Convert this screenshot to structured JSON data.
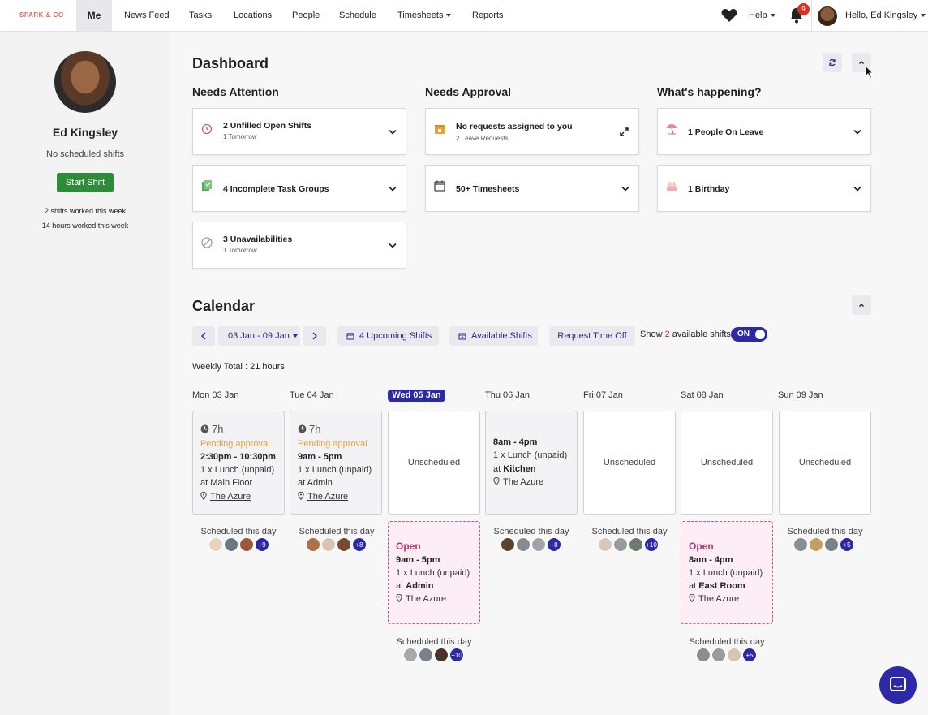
{
  "nav": {
    "brand": "SPARK & CO",
    "me": "Me",
    "items": [
      "News Feed",
      "Tasks",
      "Locations",
      "People",
      "Schedule",
      "Timesheets",
      "Reports"
    ],
    "help": "Help",
    "notification_count": "9",
    "greeting": "Hello, Ed Kingsley"
  },
  "profile": {
    "name": "Ed Kingsley",
    "status": "No scheduled shifts",
    "start_shift": "Start Shift",
    "shifts_worked": "2 shifts worked this week",
    "hours_worked": "14 hours worked this week"
  },
  "dashboard": {
    "title": "Dashboard",
    "needs_attention": {
      "title": "Needs Attention",
      "cards": [
        {
          "title": "2 Unfilled Open Shifts",
          "sub": "1 Tomorrow",
          "icon": "clock-icon"
        },
        {
          "title": "4 Incomplete Task Groups",
          "sub": "",
          "icon": "task-group-icon"
        },
        {
          "title": "3 Unavailabilities",
          "sub": "1 Tomorrow",
          "icon": "unavailable-icon"
        }
      ]
    },
    "needs_approval": {
      "title": "Needs Approval",
      "cards": [
        {
          "title": "No requests assigned to you",
          "sub": "2 Leave Requests",
          "icon": "leave-request-icon"
        },
        {
          "title": "50+ Timesheets",
          "sub": "",
          "icon": "timesheet-calendar-icon"
        }
      ]
    },
    "whats_happening": {
      "title": "What's happening?",
      "cards": [
        {
          "title": "1 People On Leave",
          "sub": "",
          "icon": "beach-umbrella-icon"
        },
        {
          "title": "1 Birthday",
          "sub": "",
          "icon": "birthday-cake-icon"
        }
      ]
    }
  },
  "calendar": {
    "title": "Calendar",
    "date_range": "03 Jan - 09 Jan",
    "upcoming_shifts": "4 Upcoming Shifts",
    "available_shifts": "Available Shifts",
    "request_time_off": "Request Time Off",
    "show_prefix": "Show",
    "show_count": "2",
    "show_suffix": "available shifts",
    "toggle_label": "ON",
    "weekly_total": "Weekly Total : 21 hours",
    "scheduled_label": "Scheduled this day",
    "days": [
      {
        "label": "Mon 03 Jan",
        "hours": "7h",
        "status": "Pending approval",
        "time": "2:30pm - 10:30pm",
        "break": "1 x Lunch (unpaid)",
        "area_prefix": "at",
        "area": "Main Floor",
        "location": "The Azure",
        "plus": "+9"
      },
      {
        "label": "Tue 04 Jan",
        "hours": "7h",
        "status": "Pending approval",
        "time": "9am - 5pm",
        "break": "1 x Lunch (unpaid)",
        "area_prefix": "at",
        "area": "Admin",
        "location": "The Azure",
        "plus": "+8"
      },
      {
        "label": "Wed 05 Jan",
        "unscheduled": "Unscheduled",
        "plus": "+10",
        "open": {
          "title": "Open",
          "time": "9am - 5pm",
          "break": "1 x Lunch (unpaid)",
          "area_prefix": "at",
          "area": "Admin",
          "location": "The Azure"
        }
      },
      {
        "label": "Thu 06 Jan",
        "time": "8am - 4pm",
        "break": "1 x Lunch (unpaid)",
        "area_prefix": "at",
        "area": "Kitchen",
        "location": "The Azure",
        "plus": "+8"
      },
      {
        "label": "Fri 07 Jan",
        "unscheduled": "Unscheduled",
        "plus": "+10"
      },
      {
        "label": "Sat 08 Jan",
        "unscheduled": "Unscheduled",
        "plus": "+5",
        "open": {
          "title": "Open",
          "time": "8am - 4pm",
          "break": "1 x Lunch (unpaid)",
          "area_prefix": "at",
          "area": "East Room",
          "location": "The Azure"
        }
      },
      {
        "label": "Sun 09 Jan",
        "unscheduled": "Unscheduled",
        "plus": "+5"
      }
    ]
  },
  "colors": {
    "accent": "#2b29a8",
    "brand": "#e0685a",
    "start_green": "#2e8b3a",
    "pending": "#e8a23a",
    "open_pink": "#b03a6a",
    "badge_red": "#d93025"
  }
}
